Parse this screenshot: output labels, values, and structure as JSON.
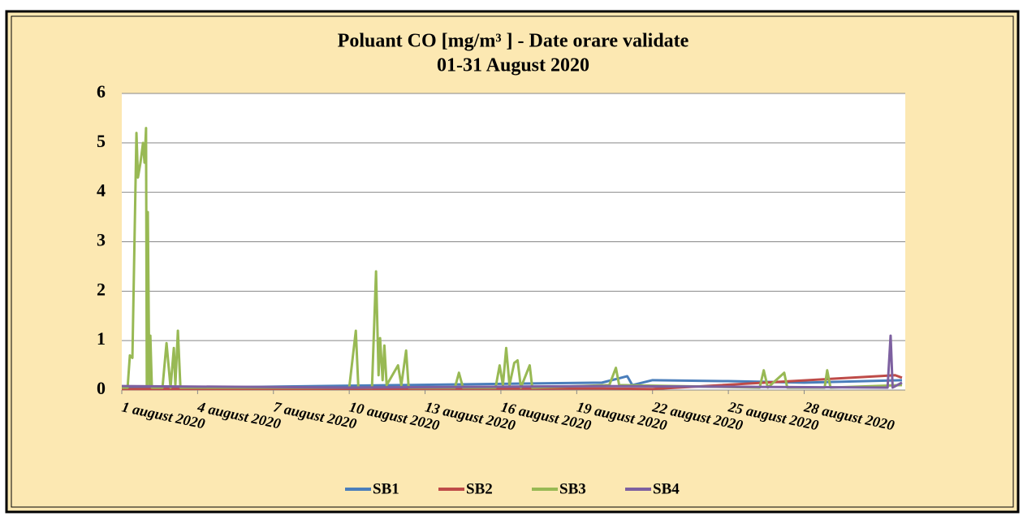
{
  "chart_data": {
    "type": "line",
    "title": "Poluant CO [mg/m³ ] - Date orare validate",
    "subtitle": "01-31 August 2020",
    "xlim": [
      1,
      32
    ],
    "xticks": [
      {
        "value": 1,
        "label": "1 august 2020"
      },
      {
        "value": 4,
        "label": "4 august 2020"
      },
      {
        "value": 7,
        "label": "7 august 2020"
      },
      {
        "value": 10,
        "label": "10 august 2020"
      },
      {
        "value": 13,
        "label": "13 august 2020"
      },
      {
        "value": 16,
        "label": "16 august 2020"
      },
      {
        "value": 19,
        "label": "19 august 2020"
      },
      {
        "value": 22,
        "label": "22 august 2020"
      },
      {
        "value": 25,
        "label": "25 august 2020"
      },
      {
        "value": 28,
        "label": "28 august 2020"
      }
    ],
    "ylim": [
      0,
      6
    ],
    "yticks": [
      0,
      1,
      2,
      3,
      4,
      5,
      6
    ],
    "grid": true,
    "legend": "bottom",
    "series": [
      {
        "name": "SB1",
        "color": "#4a7ebb",
        "x": [
          1,
          12,
          20,
          21,
          21.2,
          22,
          25,
          28,
          31.87
        ],
        "values": [
          0.03,
          0.1,
          0.15,
          0.28,
          0.1,
          0.2,
          0.18,
          0.15,
          0.2
        ]
      },
      {
        "name": "SB2",
        "color": "#be4b48",
        "x": [
          1,
          20,
          22,
          31.6,
          31.87
        ],
        "values": [
          0.02,
          0.03,
          0.02,
          0.3,
          0.25
        ]
      },
      {
        "name": "SB3",
        "color": "#98b954",
        "x": [
          1,
          1.23,
          1.32,
          1.42,
          1.58,
          1.64,
          1.74,
          1.84,
          1.9,
          1.96,
          1.99,
          2.03,
          2.09,
          2.13,
          2.19,
          2.61,
          2.77,
          2.93,
          3.06,
          3.12,
          3.22,
          3.32,
          10,
          10.26,
          10.36,
          10.9,
          11.06,
          11.16,
          11.22,
          11.32,
          11.39,
          11.48,
          11.93,
          12.06,
          12.25,
          12.35,
          14.18,
          14.34,
          14.5,
          15.79,
          15.95,
          16.08,
          16.21,
          16.34,
          16.53,
          16.66,
          16.79,
          17.14,
          17.24,
          20.29,
          20.55,
          20.68,
          26.24,
          26.4,
          26.56,
          27.21,
          27.33,
          28.81,
          28.91,
          29.04,
          31.87
        ],
        "values": [
          0.05,
          0.05,
          0.7,
          0.65,
          5.2,
          4.3,
          4.6,
          5.0,
          4.6,
          5.3,
          0.1,
          3.6,
          0.1,
          1.1,
          0.05,
          0.05,
          0.95,
          0.05,
          0.85,
          0.1,
          1.2,
          0.05,
          0.05,
          1.2,
          0.05,
          0.05,
          2.4,
          0.3,
          1.05,
          0.2,
          0.9,
          0.1,
          0.5,
          0.1,
          0.8,
          0.05,
          0.05,
          0.35,
          0.05,
          0.05,
          0.5,
          0.1,
          0.85,
          0.1,
          0.55,
          0.6,
          0.05,
          0.5,
          0.05,
          0.1,
          0.45,
          0.1,
          0.05,
          0.4,
          0.05,
          0.35,
          0.05,
          0.05,
          0.4,
          0.05,
          0.1
        ]
      },
      {
        "name": "SB4",
        "color": "#7d60a0",
        "x": [
          1,
          10,
          20,
          31.3,
          31.42,
          31.5,
          31.87
        ],
        "values": [
          0.08,
          0.05,
          0.08,
          0.05,
          1.1,
          0.05,
          0.15
        ]
      }
    ]
  }
}
